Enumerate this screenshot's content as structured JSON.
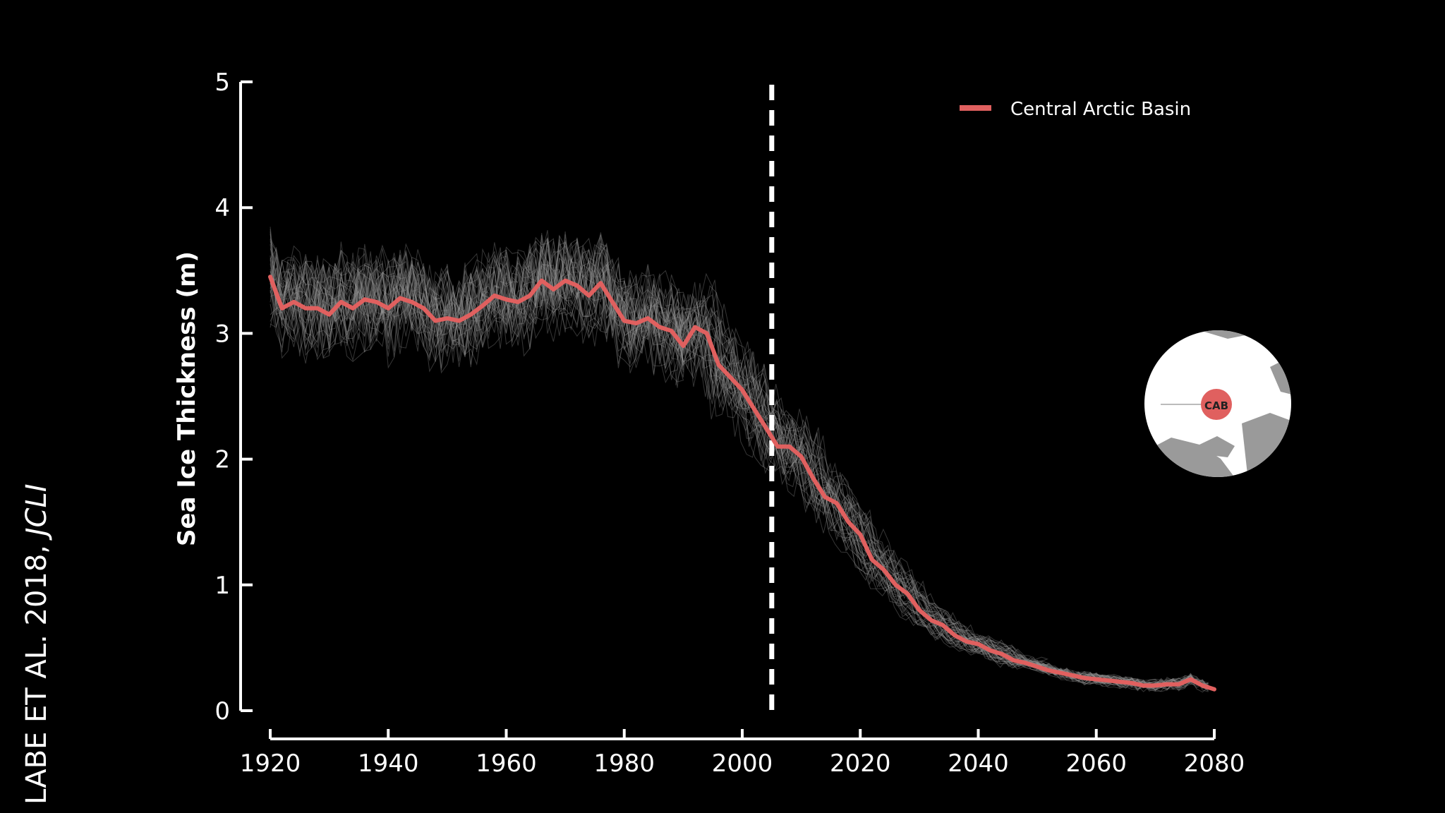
{
  "credit": {
    "text": "LABE ET AL. 2018, ",
    "journal": "JCLI"
  },
  "chart_data": {
    "type": "line",
    "title": "",
    "xlabel": "",
    "ylabel": "Sea Ice Thickness (m)",
    "xlim": [
      1920,
      2080
    ],
    "ylim": [
      0,
      5
    ],
    "xticks": [
      1920,
      1940,
      1960,
      1980,
      2000,
      2020,
      2040,
      2060,
      2080
    ],
    "yticks": [
      0,
      1,
      2,
      3,
      4,
      5
    ],
    "grid": false,
    "legend_position": "top-right",
    "vline": {
      "x": 2005,
      "style": "dashed",
      "color": "#ffffff"
    },
    "ensemble": {
      "members": 40,
      "color": "#9a9a9a",
      "spread": 0.35
    },
    "series": [
      {
        "name": "Central Arctic Basin",
        "color": "#e0605f",
        "x": [
          1920,
          1922,
          1924,
          1926,
          1928,
          1930,
          1932,
          1934,
          1936,
          1938,
          1940,
          1942,
          1944,
          1946,
          1948,
          1950,
          1952,
          1954,
          1956,
          1958,
          1960,
          1962,
          1964,
          1966,
          1968,
          1970,
          1972,
          1974,
          1976,
          1978,
          1980,
          1982,
          1984,
          1986,
          1988,
          1990,
          1992,
          1994,
          1996,
          1998,
          2000,
          2002,
          2004,
          2006,
          2008,
          2010,
          2012,
          2014,
          2016,
          2018,
          2020,
          2022,
          2024,
          2026,
          2028,
          2030,
          2032,
          2034,
          2036,
          2038,
          2040,
          2042,
          2044,
          2046,
          2048,
          2050,
          2052,
          2054,
          2056,
          2058,
          2060,
          2062,
          2064,
          2066,
          2068,
          2070,
          2072,
          2074,
          2076,
          2078,
          2080
        ],
        "values": [
          3.45,
          3.2,
          3.25,
          3.2,
          3.2,
          3.15,
          3.25,
          3.2,
          3.27,
          3.25,
          3.2,
          3.28,
          3.25,
          3.2,
          3.1,
          3.12,
          3.1,
          3.15,
          3.22,
          3.3,
          3.27,
          3.25,
          3.3,
          3.42,
          3.35,
          3.42,
          3.38,
          3.3,
          3.4,
          3.25,
          3.1,
          3.08,
          3.12,
          3.05,
          3.02,
          2.9,
          3.05,
          3.0,
          2.75,
          2.65,
          2.55,
          2.4,
          2.25,
          2.1,
          2.1,
          2.02,
          1.85,
          1.7,
          1.65,
          1.5,
          1.4,
          1.2,
          1.12,
          1.0,
          0.93,
          0.8,
          0.72,
          0.68,
          0.6,
          0.55,
          0.53,
          0.48,
          0.45,
          0.4,
          0.38,
          0.35,
          0.32,
          0.3,
          0.28,
          0.26,
          0.25,
          0.24,
          0.23,
          0.22,
          0.2,
          0.2,
          0.21,
          0.21,
          0.25,
          0.2,
          0.17
        ]
      }
    ],
    "inset": {
      "label": "CAB"
    }
  }
}
